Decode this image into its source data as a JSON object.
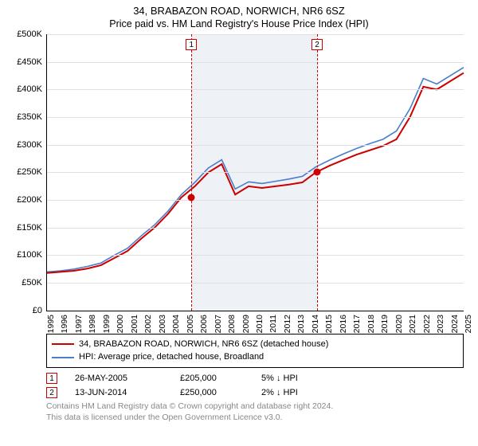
{
  "title": "34, BRABAZON ROAD, NORWICH, NR6 6SZ",
  "subtitle": "Price paid vs. HM Land Registry's House Price Index (HPI)",
  "chart": {
    "type": "line",
    "background_color": "#ffffff",
    "grid_color": "#e0e0e0",
    "axis_color": "#000000",
    "label_fontsize": 11,
    "ylim": [
      0,
      500000
    ],
    "ytick_step": 50000,
    "yprefix": "£",
    "yticks_labels": [
      "£0",
      "£50K",
      "£100K",
      "£150K",
      "£200K",
      "£250K",
      "£300K",
      "£350K",
      "£400K",
      "£450K",
      "£500K"
    ],
    "xlim": [
      1995,
      2025
    ],
    "xticks": [
      1995,
      1996,
      1997,
      1998,
      1999,
      2000,
      2001,
      2002,
      2003,
      2004,
      2005,
      2006,
      2007,
      2008,
      2009,
      2010,
      2011,
      2012,
      2013,
      2014,
      2015,
      2016,
      2017,
      2018,
      2019,
      2020,
      2021,
      2022,
      2023,
      2024,
      2025
    ],
    "band": {
      "start": 2005.4,
      "end": 2014.45,
      "color": "#eef1f6"
    },
    "vlines": [
      {
        "x": 2005.4,
        "color": "#d00000",
        "dash": true,
        "label": "1"
      },
      {
        "x": 2014.45,
        "color": "#d00000",
        "dash": true,
        "label": "2"
      }
    ],
    "series": [
      {
        "name": "34, BRABAZON ROAD, NORWICH, NR6 6SZ (detached house)",
        "color": "#cc0000",
        "line_width": 2,
        "y": [
          68,
          70,
          72,
          76,
          82,
          95,
          108,
          130,
          150,
          175,
          205,
          225,
          250,
          265,
          210,
          225,
          222,
          225,
          228,
          232,
          250,
          262,
          272,
          282,
          290,
          298,
          310,
          350,
          405,
          400,
          415,
          430
        ]
      },
      {
        "name": "HPI: Average price, detached house, Broadland",
        "color": "#4a7ec8",
        "line_width": 1.6,
        "y": [
          70,
          72,
          75,
          80,
          86,
          100,
          113,
          135,
          155,
          180,
          210,
          232,
          258,
          273,
          220,
          233,
          230,
          234,
          238,
          243,
          260,
          272,
          283,
          293,
          302,
          310,
          325,
          365,
          420,
          410,
          425,
          440
        ]
      }
    ],
    "sale_points": [
      {
        "x": 2005.4,
        "y": 205000,
        "color": "#cc0000"
      },
      {
        "x": 2014.45,
        "y": 250000,
        "color": "#cc0000"
      }
    ]
  },
  "legend": {
    "border_color": "#000000",
    "items": [
      {
        "color": "#cc0000",
        "label": "34, BRABAZON ROAD, NORWICH, NR6 6SZ (detached house)"
      },
      {
        "color": "#4a7ec8",
        "label": "HPI: Average price, detached house, Broadland"
      }
    ]
  },
  "sales": [
    {
      "marker": "1",
      "date": "26-MAY-2005",
      "price": "£205,000",
      "delta": "5% ↓ HPI"
    },
    {
      "marker": "2",
      "date": "13-JUN-2014",
      "price": "£250,000",
      "delta": "2% ↓ HPI"
    }
  ],
  "footer": {
    "line1": "Contains HM Land Registry data © Crown copyright and database right 2024.",
    "line2": "This data is licensed under the Open Government Licence v3.0."
  },
  "colors": {
    "footer_text": "#888888"
  }
}
